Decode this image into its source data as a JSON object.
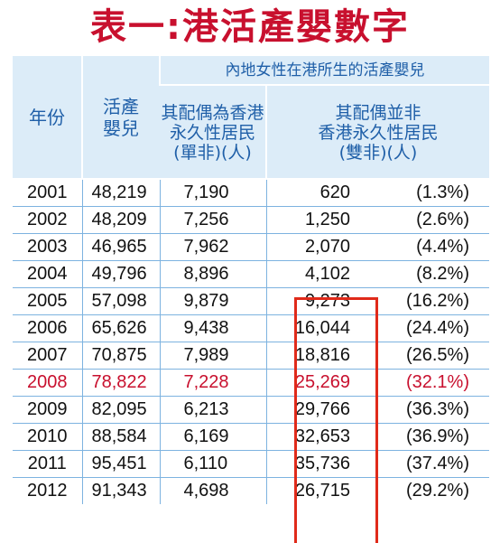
{
  "title": "表一:港活產嬰數字",
  "headers": {
    "year": "年份",
    "live_births": "活產\n嬰兒",
    "group": "內地女性在港所生的活產嬰兒",
    "single": "其配偶為香港\n永久性居民\n(單非)(人)",
    "double": "其配偶並非\n香港永久性居民\n(雙非)(人)"
  },
  "rows": [
    {
      "year": "2001",
      "live": "48,219",
      "single": "7,190",
      "double": "620",
      "pct": "(1.3%)"
    },
    {
      "year": "2002",
      "live": "48,209",
      "single": "7,256",
      "double": "1,250",
      "pct": "(2.6%)"
    },
    {
      "year": "2003",
      "live": "46,965",
      "single": "7,962",
      "double": "2,070",
      "pct": "(4.4%)"
    },
    {
      "year": "2004",
      "live": "49,796",
      "single": "8,896",
      "double": "4,102",
      "pct": "(8.2%)"
    },
    {
      "year": "2005",
      "live": "57,098",
      "single": "9,879",
      "double": "9,273",
      "pct": "(16.2%)"
    },
    {
      "year": "2006",
      "live": "65,626",
      "single": "9,438",
      "double": "16,044",
      "pct": "(24.4%)"
    },
    {
      "year": "2007",
      "live": "70,875",
      "single": "7,989",
      "double": "18,816",
      "pct": "(26.5%)"
    },
    {
      "year": "2008",
      "live": "78,822",
      "single": "7,228",
      "double": "25,269",
      "pct": "(32.1%)"
    },
    {
      "year": "2009",
      "live": "82,095",
      "single": "6,213",
      "double": "29,766",
      "pct": "(36.3%)"
    },
    {
      "year": "2010",
      "live": "88,584",
      "single": "6,169",
      "double": "32,653",
      "pct": "(36.9%)"
    },
    {
      "year": "2011",
      "live": "95,451",
      "single": "6,110",
      "double": "35,736",
      "pct": "(37.4%)"
    },
    {
      "year": "2012",
      "live": "91,343",
      "single": "4,698",
      "double": "26,715",
      "pct": "(29.2%)"
    }
  ],
  "highlight_row_year": "2008",
  "colors": {
    "title": "#c8102e",
    "header_bg": "#dcecf8",
    "header_text": "#1f5fa8",
    "grid": "#7db3e0",
    "highlight_text": "#c8102e",
    "box": "#e02a1a"
  }
}
